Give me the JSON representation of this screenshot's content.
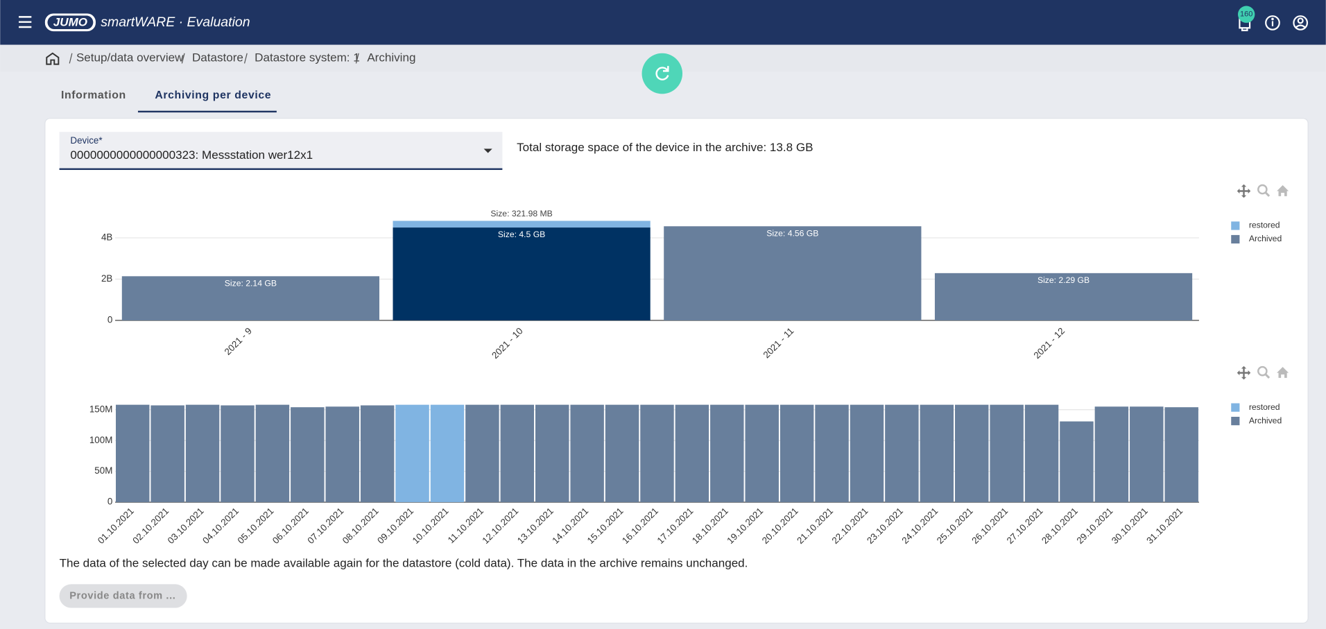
{
  "header": {
    "brand": "JUMO",
    "app": "smartWARE · Evaluation",
    "notifications": "160"
  },
  "breadcrumb": [
    "Setup/data overview",
    "Datastore",
    "Datastore system: 1",
    "Archiving"
  ],
  "tabs": [
    "Information",
    "Archiving per device"
  ],
  "device": {
    "label": "Device*",
    "value": "0000000000000000323: Messstation wer12x1"
  },
  "total_storage": "Total storage space of the device in the archive: 13.8 GB",
  "chart_data": [
    {
      "type": "bar",
      "stacked": true,
      "categories": [
        "2021 - 9",
        "2021 - 10",
        "2021 - 11",
        "2021 - 12"
      ],
      "series": [
        {
          "name": "restored",
          "color": "#80b4e2",
          "values": [
            null,
            321980000,
            null,
            null
          ],
          "value_labels": [
            null,
            "Size: 321.98 MB",
            null,
            null
          ]
        },
        {
          "name": "Archived",
          "color": "#687f9c",
          "colors": [
            "#687f9c",
            "#003263",
            "#687f9c",
            "#687f9c"
          ],
          "values": [
            2140000000,
            4500000000,
            4560000000,
            2290000000
          ],
          "value_labels": [
            "Size: 2.14 GB",
            "Size: 4.5 GB",
            "Size: 4.56 GB",
            "Size: 2.29 GB"
          ]
        }
      ],
      "ylim": [
        0,
        5200000000
      ],
      "yticks": [
        0,
        {
          "value": 2000000000,
          "label": "2B"
        },
        {
          "value": 4000000000,
          "label": "4B"
        }
      ],
      "grid": true,
      "legend": "top-right"
    },
    {
      "type": "bar",
      "stacked": true,
      "categories": [
        "01.10.2021",
        "02.10.2021",
        "03.10.2021",
        "04.10.2021",
        "05.10.2021",
        "06.10.2021",
        "07.10.2021",
        "08.10.2021",
        "09.10.2021",
        "10.10.2021",
        "11.10.2021",
        "12.10.2021",
        "13.10.2021",
        "14.10.2021",
        "15.10.2021",
        "16.10.2021",
        "17.10.2021",
        "18.10.2021",
        "19.10.2021",
        "20.10.2021",
        "21.10.2021",
        "22.10.2021",
        "23.10.2021",
        "24.10.2021",
        "25.10.2021",
        "26.10.2021",
        "27.10.2021",
        "28.10.2021",
        "29.10.2021",
        "30.10.2021",
        "31.10.2021"
      ],
      "series": [
        {
          "name": "restored",
          "color": "#80b4e2",
          "values": [
            null,
            null,
            null,
            null,
            null,
            null,
            null,
            null,
            158000000,
            158000000,
            null,
            null,
            null,
            null,
            null,
            null,
            null,
            null,
            null,
            null,
            null,
            null,
            null,
            null,
            null,
            null,
            null,
            null,
            null,
            null,
            null
          ]
        },
        {
          "name": "Archived",
          "color": "#687f9c",
          "values": [
            158000000,
            157000000,
            158000000,
            157000000,
            158000000,
            154000000,
            155000000,
            157000000,
            null,
            null,
            158000000,
            158000000,
            158000000,
            158000000,
            158000000,
            158000000,
            158000000,
            158000000,
            158000000,
            158000000,
            158000000,
            158000000,
            158000000,
            158000000,
            158000000,
            158000000,
            158000000,
            131000000,
            155000000,
            155000000,
            154000000
          ]
        }
      ],
      "ylim": [
        0,
        170000000
      ],
      "yticks": [
        0,
        {
          "value": 50000000,
          "label": "50M"
        },
        {
          "value": 100000000,
          "label": "100M"
        },
        {
          "value": 150000000,
          "label": "150M"
        }
      ],
      "grid": true,
      "legend": "top-right"
    }
  ],
  "note": "The data of the selected day can be made available again for the datastore (cold data). The data in the archive remains unchanged.",
  "button": "Provide data from ..."
}
